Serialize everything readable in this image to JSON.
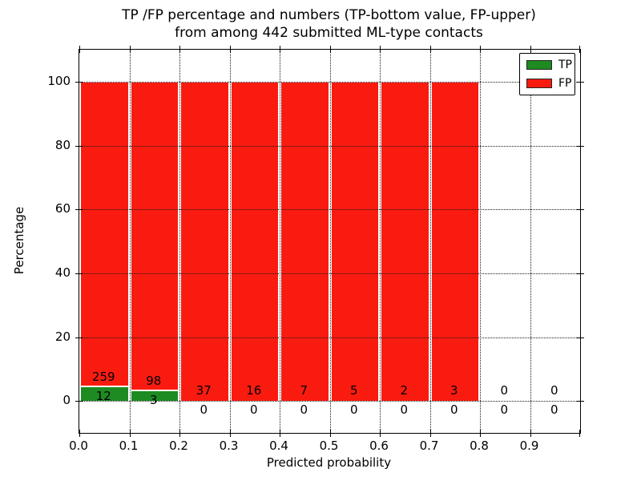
{
  "title": {
    "line1": "TP /FP percentage and numbers (TP-bottom value, FP-upper)",
    "line2": "from among 442 submitted ML-type contacts"
  },
  "axes": {
    "xlabel": "Predicted probability",
    "ylabel": "Percentage"
  },
  "legend": {
    "items": [
      {
        "label": "TP",
        "color": "#1e8b22"
      },
      {
        "label": "FP",
        "color": "#fa1b10"
      }
    ]
  },
  "chart_data": {
    "type": "bar",
    "stacked": true,
    "title": "TP /FP percentage and numbers (TP-bottom value, FP-upper) from among 442 submitted ML-type contacts",
    "xlabel": "Predicted probability",
    "ylabel": "Percentage",
    "xlim": [
      0.0,
      1.0
    ],
    "ylim": [
      -10,
      110
    ],
    "x_tick_labels": [
      "0.0",
      "0.1",
      "0.2",
      "0.3",
      "0.4",
      "0.5",
      "0.6",
      "0.7",
      "0.8",
      "0.9"
    ],
    "y_ticks": [
      0,
      20,
      40,
      60,
      80,
      100
    ],
    "grid": {
      "style": "dotted",
      "color": "#1a1a1a",
      "above_bars": true
    },
    "legend_position": "upper right",
    "bin_width": 0.1,
    "total_contacts": 442,
    "series": [
      {
        "name": "TP",
        "color": "#1e8b22",
        "counts": [
          12,
          3,
          0,
          0,
          0,
          0,
          0,
          0,
          0,
          0
        ]
      },
      {
        "name": "FP",
        "color": "#fa1b10",
        "counts": [
          259,
          98,
          37,
          16,
          7,
          5,
          2,
          3,
          0,
          0
        ]
      }
    ],
    "bins": [
      {
        "start": 0.0,
        "end": 0.1,
        "tp": 12,
        "fp": 259,
        "tp_pct": 4.43,
        "fp_pct": 95.57
      },
      {
        "start": 0.1,
        "end": 0.2,
        "tp": 3,
        "fp": 98,
        "tp_pct": 2.97,
        "fp_pct": 97.03
      },
      {
        "start": 0.2,
        "end": 0.3,
        "tp": 0,
        "fp": 37,
        "tp_pct": 0,
        "fp_pct": 100
      },
      {
        "start": 0.3,
        "end": 0.4,
        "tp": 0,
        "fp": 16,
        "tp_pct": 0,
        "fp_pct": 100
      },
      {
        "start": 0.4,
        "end": 0.5,
        "tp": 0,
        "fp": 7,
        "tp_pct": 0,
        "fp_pct": 100
      },
      {
        "start": 0.5,
        "end": 0.6,
        "tp": 0,
        "fp": 5,
        "tp_pct": 0,
        "fp_pct": 100
      },
      {
        "start": 0.6,
        "end": 0.7,
        "tp": 0,
        "fp": 2,
        "tp_pct": 0,
        "fp_pct": 100
      },
      {
        "start": 0.7,
        "end": 0.8,
        "tp": 0,
        "fp": 3,
        "tp_pct": 0,
        "fp_pct": 100
      },
      {
        "start": 0.8,
        "end": 0.9,
        "tp": 0,
        "fp": 0,
        "tp_pct": null,
        "fp_pct": null
      },
      {
        "start": 0.9,
        "end": 1.0,
        "tp": 0,
        "fp": 0,
        "tp_pct": null,
        "fp_pct": null
      }
    ]
  }
}
